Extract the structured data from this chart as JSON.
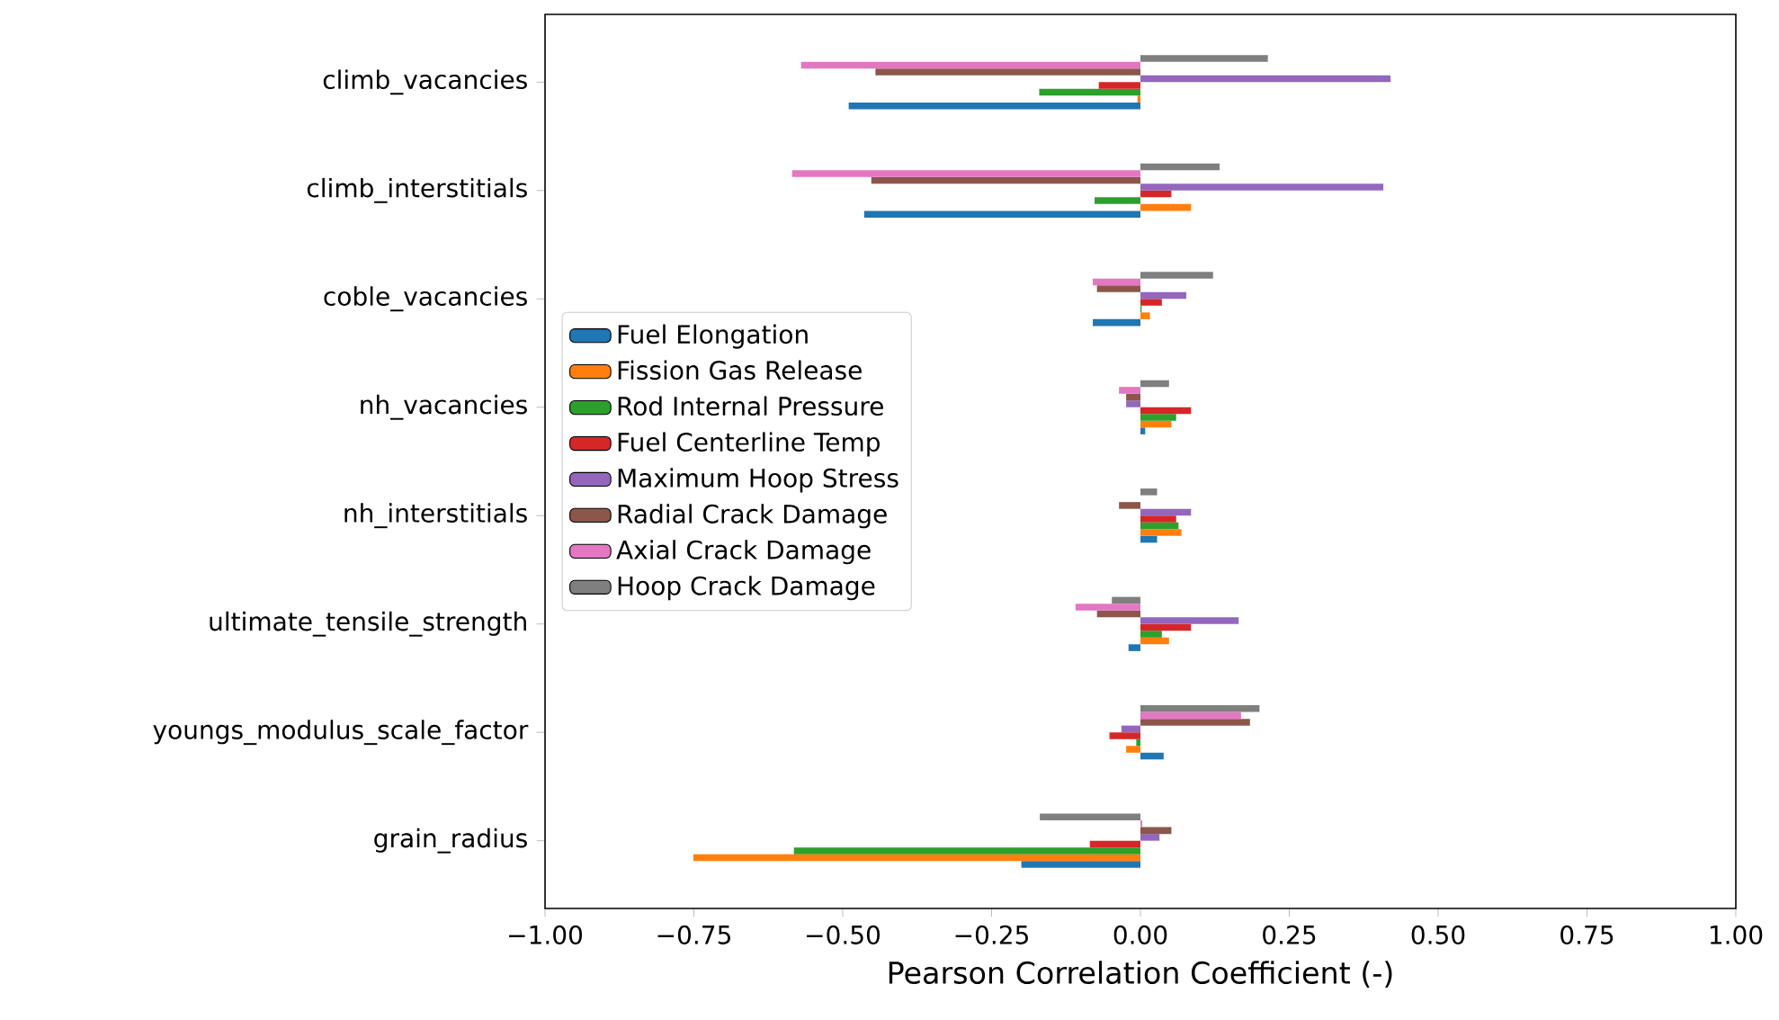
{
  "chart_data": {
    "type": "bar",
    "orientation": "horizontal",
    "xlabel": "Pearson Correlation Coefficient (-)",
    "categories": [
      "climb_vacancies",
      "climb_interstitials",
      "coble_vacancies",
      "nh_vacancies",
      "nh_interstitials",
      "ultimate_tensile_strength",
      "youngs_modulus_scale_factor",
      "grain_radius"
    ],
    "series": [
      {
        "name": "Fuel Elongation",
        "color": "#1f77b4",
        "values": [
          -0.49,
          -0.464,
          -0.08,
          0.008,
          0.028,
          -0.02,
          0.039,
          -0.2
        ]
      },
      {
        "name": "Fission Gas Release",
        "color": "#ff7f0e",
        "values": [
          -0.005,
          0.085,
          0.016,
          0.052,
          0.069,
          0.048,
          -0.024,
          -0.751
        ]
      },
      {
        "name": "Rod Internal Pressure",
        "color": "#2ca02c",
        "values": [
          -0.17,
          -0.077,
          0.002,
          0.06,
          0.064,
          0.036,
          -0.007,
          -0.582
        ]
      },
      {
        "name": "Fuel Centerline Temp",
        "color": "#d62728",
        "values": [
          -0.07,
          0.052,
          0.036,
          0.085,
          0.06,
          0.085,
          -0.052,
          -0.085
        ]
      },
      {
        "name": "Maximum Hoop Stress",
        "color": "#9467bd",
        "values": [
          0.42,
          0.408,
          0.077,
          -0.024,
          0.085,
          0.165,
          -0.032,
          0.032
        ]
      },
      {
        "name": "Radial Crack Damage",
        "color": "#8c564b",
        "values": [
          -0.445,
          -0.452,
          -0.073,
          -0.024,
          -0.036,
          -0.073,
          0.184,
          0.052
        ]
      },
      {
        "name": "Axial Crack Damage",
        "color": "#e377c2",
        "values": [
          -0.57,
          -0.585,
          -0.08,
          -0.036,
          0.0,
          -0.109,
          0.169,
          0.003
        ]
      },
      {
        "name": "Hoop Crack Damage",
        "color": "#7f7f7f",
        "values": [
          0.214,
          0.133,
          0.122,
          0.048,
          0.028,
          -0.048,
          0.2,
          -0.169
        ]
      }
    ],
    "xlim": [
      -1,
      1
    ],
    "xticks": [
      {
        "value": -1,
        "label": "−1.00"
      },
      {
        "value": -0.75,
        "label": "−0.75"
      },
      {
        "value": -0.5,
        "label": "−0.50"
      },
      {
        "value": -0.25,
        "label": "−0.25"
      },
      {
        "value": 0,
        "label": "0.00"
      },
      {
        "value": 0.25,
        "label": "0.25"
      },
      {
        "value": 0.5,
        "label": "0.50"
      },
      {
        "value": 0.75,
        "label": "0.75"
      },
      {
        "value": 1,
        "label": "1.00"
      }
    ],
    "legend": "center left"
  }
}
